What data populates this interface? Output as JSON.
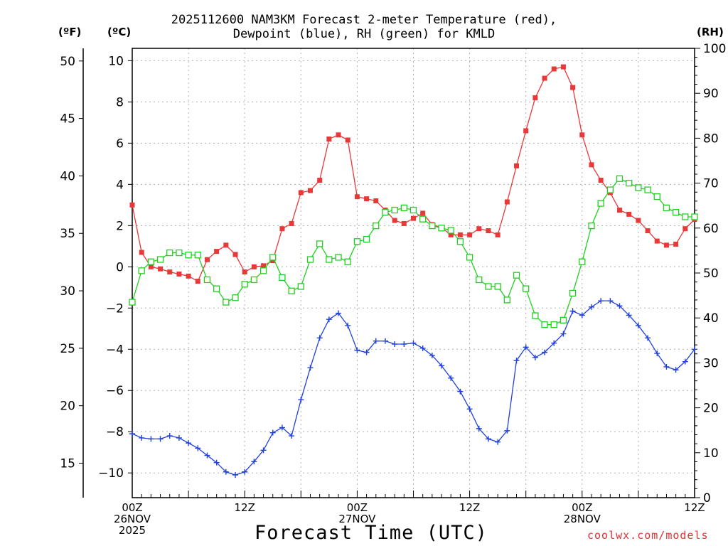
{
  "header": {
    "title_line1": "2025112600 NAM3KM Forecast 2-meter Temperature (red),",
    "title_line2": "Dewpoint (blue), RH (green) for KMLD",
    "unit_f": "(ºF)",
    "unit_c": "(ºC)",
    "unit_rh": "(RH)"
  },
  "footer": {
    "x_title": "Forecast Time (UTC)",
    "credit": "coolwx.com/models"
  },
  "x_ticks": [
    {
      "hour": 0,
      "line1": "00Z",
      "line2": "26NOV",
      "line3": "2025"
    },
    {
      "hour": 12,
      "line1": "12Z",
      "line2": "",
      "line3": ""
    },
    {
      "hour": 24,
      "line1": "00Z",
      "line2": "27NOV",
      "line3": ""
    },
    {
      "hour": 36,
      "line1": "12Z",
      "line2": "",
      "line3": ""
    },
    {
      "hour": 48,
      "line1": "00Z",
      "line2": "28NOV",
      "line3": ""
    },
    {
      "hour": 60,
      "line1": "12Z",
      "line2": "",
      "line3": ""
    }
  ],
  "colors": {
    "temperature": "#e83838",
    "dewpoint": "#2040e0",
    "rh": "#20d020",
    "grid": "#b0b0b0"
  },
  "chart_data": {
    "type": "line",
    "title": "2025112600 NAM3KM Forecast 2-meter Temperature (red), Dewpoint (blue), RH (green) for KMLD",
    "xlabel": "Forecast Time (UTC)",
    "x_hours": [
      0,
      1,
      2,
      3,
      4,
      5,
      6,
      7,
      8,
      9,
      10,
      11,
      12,
      13,
      14,
      15,
      16,
      17,
      18,
      19,
      20,
      21,
      22,
      23,
      24,
      25,
      26,
      27,
      28,
      29,
      30,
      31,
      32,
      33,
      34,
      35,
      36,
      37,
      38,
      39,
      40,
      41,
      42,
      43,
      44,
      45,
      46,
      47,
      48,
      49,
      50,
      51,
      52,
      53,
      54,
      55,
      56,
      57,
      58,
      59,
      60
    ],
    "xlim": [
      0,
      60
    ],
    "ylim_c": [
      -11.2,
      10.6
    ],
    "ylim_f": [
      12.0,
      51.1
    ],
    "ylim_rh": [
      0,
      100
    ],
    "y_ticks_c": [
      -10,
      -8,
      -6,
      -4,
      -2,
      0,
      2,
      4,
      6,
      8,
      10
    ],
    "y_ticks_f": [
      15,
      20,
      25,
      30,
      35,
      40,
      45,
      50
    ],
    "y_ticks_rh": [
      0,
      10,
      20,
      30,
      40,
      50,
      60,
      70,
      80,
      90,
      100
    ],
    "series": [
      {
        "name": "Temperature (°C)",
        "axis": "c",
        "marker": "filled-square",
        "values": [
          3.0,
          0.7,
          0.0,
          -0.1,
          -0.25,
          -0.35,
          -0.45,
          -0.7,
          0.35,
          0.75,
          1.05,
          0.6,
          -0.25,
          0.0,
          0.05,
          0.3,
          1.85,
          2.1,
          3.6,
          3.7,
          4.2,
          6.2,
          6.4,
          6.15,
          3.4,
          3.3,
          3.2,
          2.75,
          2.25,
          2.1,
          2.35,
          2.6,
          2.05,
          1.9,
          1.55,
          1.55,
          1.55,
          1.85,
          1.75,
          1.55,
          3.15,
          4.9,
          6.6,
          8.2,
          9.15,
          9.6,
          9.7,
          8.7,
          6.4,
          4.95,
          4.2,
          3.6,
          2.75,
          2.55,
          2.25,
          1.75,
          1.25,
          1.05,
          1.1,
          1.85,
          2.3
        ]
      },
      {
        "name": "Dewpoint (°C)",
        "axis": "c",
        "marker": "plus",
        "values": [
          -8.1,
          -8.3,
          -8.35,
          -8.35,
          -8.2,
          -8.3,
          -8.55,
          -8.8,
          -9.15,
          -9.5,
          -9.95,
          -10.1,
          -9.95,
          -9.45,
          -8.9,
          -8.05,
          -7.8,
          -8.2,
          -6.45,
          -4.9,
          -3.45,
          -2.55,
          -2.25,
          -2.85,
          -4.05,
          -4.15,
          -3.6,
          -3.6,
          -3.75,
          -3.75,
          -3.7,
          -3.95,
          -4.3,
          -4.8,
          -5.4,
          -6.05,
          -6.9,
          -7.85,
          -8.35,
          -8.5,
          -7.95,
          -4.55,
          -3.9,
          -4.4,
          -4.15,
          -3.7,
          -3.25,
          -2.15,
          -2.35,
          -1.95,
          -1.65,
          -1.65,
          -1.9,
          -2.35,
          -2.85,
          -3.45,
          -4.2,
          -4.85,
          -5.0,
          -4.6,
          -4.0
        ]
      },
      {
        "name": "RH (%)",
        "axis": "rh",
        "marker": "open-square",
        "values": [
          43.5,
          50.5,
          52.5,
          53.0,
          54.5,
          54.5,
          54.0,
          54.0,
          48.5,
          46.5,
          43.5,
          44.5,
          47.5,
          48.5,
          50.5,
          53.5,
          49.0,
          46.0,
          47.0,
          53.0,
          56.5,
          53.0,
          53.5,
          52.5,
          57.0,
          57.5,
          60.5,
          63.5,
          64.0,
          64.5,
          64.0,
          62.0,
          60.5,
          60.0,
          59.5,
          57.0,
          53.5,
          48.5,
          47.0,
          47.0,
          44.0,
          49.5,
          46.5,
          40.5,
          38.5,
          38.5,
          39.5,
          45.5,
          52.5,
          60.5,
          65.5,
          68.5,
          71.0,
          70.0,
          69.0,
          68.5,
          67.0,
          64.5,
          63.5,
          62.5,
          62.5
        ]
      }
    ]
  }
}
